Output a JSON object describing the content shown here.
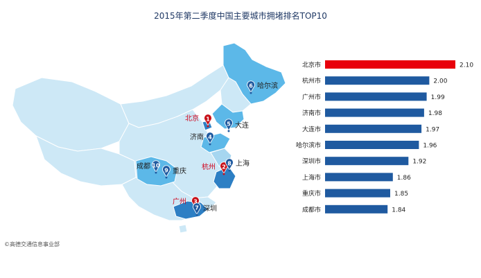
{
  "title": "2015年第二季度中国主要城市拥堵排名TOP10",
  "credit": "©高德交通信息事业部",
  "colors": {
    "highlight": "#e8000c",
    "bar": "#1f5aa0",
    "map_base": "#cde8f6",
    "map_mid": "#a6d6f0",
    "map_dark": "#5cb8e8",
    "pin_red": "#c8121a",
    "pin_blue": "#1f5aa0"
  },
  "map": {
    "markers": [
      {
        "rank": "1",
        "label": "北京",
        "hot": true
      },
      {
        "rank": "2",
        "label": "杭州",
        "hot": true
      },
      {
        "rank": "3",
        "label": "广州",
        "hot": true
      },
      {
        "rank": "4",
        "label": "济南",
        "hot": false
      },
      {
        "rank": "5",
        "label": "大连",
        "hot": false
      },
      {
        "rank": "6",
        "label": "哈尔滨",
        "hot": false
      },
      {
        "rank": "7",
        "label": "深圳",
        "hot": false
      },
      {
        "rank": "8",
        "label": "上海",
        "hot": false
      },
      {
        "rank": "9",
        "label": "重庆",
        "hot": false
      },
      {
        "rank": "10",
        "label": "成都",
        "hot": false
      }
    ]
  },
  "chart_data": {
    "type": "bar",
    "orientation": "horizontal",
    "title": "2015年第二季度中国主要城市拥堵排名TOP10",
    "categories": [
      "北京市",
      "杭州市",
      "广州市",
      "济南市",
      "大连市",
      "哈尔滨市",
      "深圳市",
      "上海市",
      "重庆市",
      "成都市"
    ],
    "values": [
      2.1,
      2.0,
      1.99,
      1.98,
      1.97,
      1.96,
      1.92,
      1.86,
      1.85,
      1.84
    ],
    "value_labels": [
      "2.10",
      "2.00",
      "1.99",
      "1.98",
      "1.97",
      "1.96",
      "1.92",
      "1.86",
      "1.85",
      "1.84"
    ],
    "xlim": [
      1.6,
      2.1
    ],
    "highlight_index": 0,
    "grid": false,
    "xlabel": "",
    "ylabel": ""
  }
}
